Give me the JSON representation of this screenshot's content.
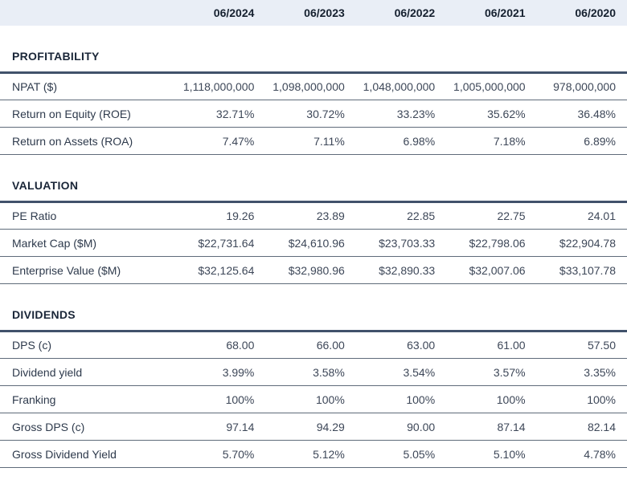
{
  "table": {
    "columns": [
      "06/2024",
      "06/2023",
      "06/2022",
      "06/2021",
      "06/2020"
    ],
    "sections": [
      {
        "title": "PROFITABILITY",
        "rows": [
          {
            "label": "NPAT ($)",
            "values": [
              "1,118,000,000",
              "1,098,000,000",
              "1,048,000,000",
              "1,005,000,000",
              "978,000,000"
            ]
          },
          {
            "label": "Return on Equity (ROE)",
            "values": [
              "32.71%",
              "30.72%",
              "33.23%",
              "35.62%",
              "36.48%"
            ]
          },
          {
            "label": "Return on Assets (ROA)",
            "values": [
              "7.47%",
              "7.11%",
              "6.98%",
              "7.18%",
              "6.89%"
            ]
          }
        ]
      },
      {
        "title": "VALUATION",
        "rows": [
          {
            "label": "PE Ratio",
            "values": [
              "19.26",
              "23.89",
              "22.85",
              "22.75",
              "24.01"
            ]
          },
          {
            "label": "Market Cap ($M)",
            "values": [
              "$22,731.64",
              "$24,610.96",
              "$23,703.33",
              "$22,798.06",
              "$22,904.78"
            ]
          },
          {
            "label": "Enterprise Value ($M)",
            "values": [
              "$32,125.64",
              "$32,980.96",
              "$32,890.33",
              "$32,007.06",
              "$33,107.78"
            ]
          }
        ]
      },
      {
        "title": "DIVIDENDS",
        "rows": [
          {
            "label": "DPS (c)",
            "values": [
              "68.00",
              "66.00",
              "63.00",
              "61.00",
              "57.50"
            ]
          },
          {
            "label": "Dividend yield",
            "values": [
              "3.99%",
              "3.58%",
              "3.54%",
              "3.57%",
              "3.35%"
            ]
          },
          {
            "label": "Franking",
            "values": [
              "100%",
              "100%",
              "100%",
              "100%",
              "100%"
            ]
          },
          {
            "label": "Gross DPS (c)",
            "values": [
              "97.14",
              "94.29",
              "90.00",
              "87.14",
              "82.14"
            ]
          },
          {
            "label": "Gross Dividend Yield",
            "values": [
              "5.70%",
              "5.12%",
              "5.05%",
              "5.10%",
              "4.78%"
            ]
          }
        ]
      }
    ]
  },
  "colors": {
    "header_bg": "#e9eef6",
    "header_text": "#15202f",
    "section_title": "#1a2638",
    "label_text": "#2e3a4c",
    "value_text": "#3d4758",
    "row_border": "#5f6b7a",
    "section_border": "#41526b"
  }
}
